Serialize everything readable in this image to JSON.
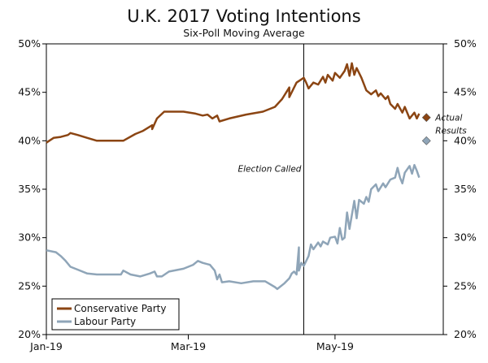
{
  "chart_data": {
    "type": "line",
    "title": "U.K. 2017 Voting Intentions",
    "subtitle": "Six-Poll Moving Average",
    "xlabel": "",
    "ylabel": "",
    "x_range": [
      "2017-01-01",
      "2017-06-15"
    ],
    "x_ticks": [
      {
        "label": "Jan-19",
        "date": "2017-01-01"
      },
      {
        "label": "Mar-19",
        "date": "2017-03-01"
      },
      {
        "label": "May-19",
        "date": "2017-05-01"
      }
    ],
    "ylim": [
      20,
      50
    ],
    "y_ticks": [
      "20%",
      "25%",
      "30%",
      "35%",
      "40%",
      "45%",
      "50%"
    ],
    "colors": {
      "conservative": "#8B4513",
      "labour": "#8FA5B8",
      "axis": "#000000",
      "marker_line": "#000000"
    },
    "series": [
      {
        "name": "Conservative Party",
        "color": "#8B4513",
        "points": [
          [
            "2017-01-01",
            39.8
          ],
          [
            "2017-01-04",
            40.3
          ],
          [
            "2017-01-07",
            40.4
          ],
          [
            "2017-01-10",
            40.6
          ],
          [
            "2017-01-11",
            40.8
          ],
          [
            "2017-01-14",
            40.6
          ],
          [
            "2017-01-18",
            40.3
          ],
          [
            "2017-01-22",
            40.0
          ],
          [
            "2017-02-02",
            40.0
          ],
          [
            "2017-02-07",
            40.7
          ],
          [
            "2017-02-10",
            41.0
          ],
          [
            "2017-02-14",
            41.6
          ],
          [
            "2017-02-14",
            41.2
          ],
          [
            "2017-02-16",
            42.3
          ],
          [
            "2017-02-19",
            43.0
          ],
          [
            "2017-02-27",
            43.0
          ],
          [
            "2017-03-04",
            42.8
          ],
          [
            "2017-03-07",
            42.6
          ],
          [
            "2017-03-09",
            42.7
          ],
          [
            "2017-03-11",
            42.3
          ],
          [
            "2017-03-13",
            42.6
          ],
          [
            "2017-03-14",
            42.0
          ],
          [
            "2017-03-18",
            42.3
          ],
          [
            "2017-03-25",
            42.7
          ],
          [
            "2017-04-01",
            43.0
          ],
          [
            "2017-04-06",
            43.5
          ],
          [
            "2017-04-09",
            44.3
          ],
          [
            "2017-04-12",
            45.5
          ],
          [
            "2017-04-12",
            44.5
          ],
          [
            "2017-04-15",
            46.0
          ],
          [
            "2017-04-18",
            46.5
          ],
          [
            "2017-04-19",
            46.0
          ],
          [
            "2017-04-20",
            45.4
          ],
          [
            "2017-04-22",
            46.0
          ],
          [
            "2017-04-24",
            45.8
          ],
          [
            "2017-04-25",
            46.2
          ],
          [
            "2017-04-26",
            46.6
          ],
          [
            "2017-04-27",
            46.0
          ],
          [
            "2017-04-28",
            46.8
          ],
          [
            "2017-04-30",
            46.2
          ],
          [
            "2017-05-01",
            47.0
          ],
          [
            "2017-05-03",
            46.5
          ],
          [
            "2017-05-05",
            47.2
          ],
          [
            "2017-05-06",
            47.9
          ],
          [
            "2017-05-07",
            46.7
          ],
          [
            "2017-05-08",
            48.0
          ],
          [
            "2017-05-09",
            46.8
          ],
          [
            "2017-05-10",
            47.5
          ],
          [
            "2017-05-12",
            46.5
          ],
          [
            "2017-05-14",
            45.2
          ],
          [
            "2017-05-16",
            44.8
          ],
          [
            "2017-05-18",
            45.2
          ],
          [
            "2017-05-19",
            44.6
          ],
          [
            "2017-05-20",
            44.9
          ],
          [
            "2017-05-22",
            44.3
          ],
          [
            "2017-05-23",
            44.6
          ],
          [
            "2017-05-24",
            43.8
          ],
          [
            "2017-05-26",
            43.3
          ],
          [
            "2017-05-27",
            43.8
          ],
          [
            "2017-05-29",
            42.9
          ],
          [
            "2017-05-30",
            43.5
          ],
          [
            "2017-06-01",
            42.3
          ],
          [
            "2017-06-03",
            42.9
          ],
          [
            "2017-06-04",
            42.3
          ],
          [
            "2017-06-05",
            42.8
          ]
        ]
      },
      {
        "name": "Labour Party",
        "color": "#8FA5B8",
        "points": [
          [
            "2017-01-01",
            28.7
          ],
          [
            "2017-01-05",
            28.5
          ],
          [
            "2017-01-07",
            28.1
          ],
          [
            "2017-01-09",
            27.6
          ],
          [
            "2017-01-11",
            27.0
          ],
          [
            "2017-01-14",
            26.7
          ],
          [
            "2017-01-18",
            26.3
          ],
          [
            "2017-01-22",
            26.2
          ],
          [
            "2017-02-01",
            26.2
          ],
          [
            "2017-02-02",
            26.6
          ],
          [
            "2017-02-05",
            26.2
          ],
          [
            "2017-02-09",
            26.0
          ],
          [
            "2017-02-13",
            26.3
          ],
          [
            "2017-02-15",
            26.5
          ],
          [
            "2017-02-16",
            26.0
          ],
          [
            "2017-02-18",
            26.0
          ],
          [
            "2017-02-21",
            26.5
          ],
          [
            "2017-02-27",
            26.8
          ],
          [
            "2017-03-03",
            27.2
          ],
          [
            "2017-03-05",
            27.6
          ],
          [
            "2017-03-07",
            27.4
          ],
          [
            "2017-03-10",
            27.2
          ],
          [
            "2017-03-12",
            26.6
          ],
          [
            "2017-03-13",
            25.7
          ],
          [
            "2017-03-14",
            26.2
          ],
          [
            "2017-03-15",
            25.4
          ],
          [
            "2017-03-18",
            25.5
          ],
          [
            "2017-03-23",
            25.3
          ],
          [
            "2017-03-28",
            25.5
          ],
          [
            "2017-04-02",
            25.5
          ],
          [
            "2017-04-06",
            24.9
          ],
          [
            "2017-04-07",
            24.7
          ],
          [
            "2017-04-10",
            25.3
          ],
          [
            "2017-04-12",
            25.8
          ],
          [
            "2017-04-13",
            26.3
          ],
          [
            "2017-04-14",
            26.5
          ],
          [
            "2017-04-15",
            26.2
          ],
          [
            "2017-04-16",
            29.0
          ],
          [
            "2017-04-16",
            26.6
          ],
          [
            "2017-04-17",
            27.4
          ],
          [
            "2017-04-18",
            27.1
          ],
          [
            "2017-04-20",
            28.1
          ],
          [
            "2017-04-21",
            29.3
          ],
          [
            "2017-04-22",
            28.8
          ],
          [
            "2017-04-24",
            29.5
          ],
          [
            "2017-04-25",
            29.1
          ],
          [
            "2017-04-26",
            29.6
          ],
          [
            "2017-04-28",
            29.3
          ],
          [
            "2017-04-29",
            30.0
          ],
          [
            "2017-05-01",
            30.1
          ],
          [
            "2017-05-02",
            29.4
          ],
          [
            "2017-05-03",
            31.0
          ],
          [
            "2017-05-04",
            29.8
          ],
          [
            "2017-05-05",
            30.0
          ],
          [
            "2017-05-06",
            32.6
          ],
          [
            "2017-05-07",
            30.9
          ],
          [
            "2017-05-09",
            33.8
          ],
          [
            "2017-05-10",
            32.0
          ],
          [
            "2017-05-11",
            33.9
          ],
          [
            "2017-05-13",
            33.5
          ],
          [
            "2017-05-14",
            34.2
          ],
          [
            "2017-05-15",
            33.7
          ],
          [
            "2017-05-16",
            35.0
          ],
          [
            "2017-05-18",
            35.5
          ],
          [
            "2017-05-19",
            34.8
          ],
          [
            "2017-05-21",
            35.6
          ],
          [
            "2017-05-22",
            35.2
          ],
          [
            "2017-05-24",
            36.0
          ],
          [
            "2017-05-26",
            36.2
          ],
          [
            "2017-05-27",
            37.2
          ],
          [
            "2017-05-28",
            36.2
          ],
          [
            "2017-05-29",
            35.6
          ],
          [
            "2017-05-30",
            36.7
          ],
          [
            "2017-06-01",
            37.4
          ],
          [
            "2017-06-02",
            36.6
          ],
          [
            "2017-06-03",
            37.5
          ],
          [
            "2017-06-04",
            36.9
          ],
          [
            "2017-06-05",
            36.2
          ]
        ]
      }
    ],
    "markers": [
      {
        "name": "Conservative actual result",
        "date": "2017-06-08",
        "value": 42.4,
        "color": "#8B4513"
      },
      {
        "name": "Labour actual result",
        "date": "2017-06-08",
        "value": 40.0,
        "color": "#8FA5B8"
      }
    ],
    "vertical_line": {
      "date": "2017-04-18",
      "label": "Election Called"
    },
    "annotation_actual": [
      "Actual",
      "Results"
    ],
    "legend": {
      "position": "bottom-left",
      "entries": [
        "Conservative Party",
        "Labour Party"
      ]
    },
    "grid": false
  }
}
